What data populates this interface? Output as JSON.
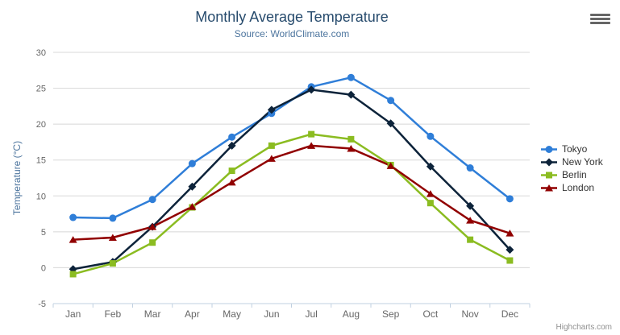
{
  "chart_data": {
    "type": "line",
    "title": "Monthly Average Temperature",
    "subtitle": "Source: WorldClimate.com",
    "xlabel": "",
    "ylabel": "Temperature (°C)",
    "categories": [
      "Jan",
      "Feb",
      "Mar",
      "Apr",
      "May",
      "Jun",
      "Jul",
      "Aug",
      "Sep",
      "Oct",
      "Nov",
      "Dec"
    ],
    "ylim": [
      -5,
      30
    ],
    "tick_interval": 5,
    "grid": true,
    "legend_position": "right",
    "series": [
      {
        "name": "Tokyo",
        "color": "#2f7ed8",
        "marker": "circle",
        "values": [
          7.0,
          6.9,
          9.5,
          14.5,
          18.2,
          21.5,
          25.2,
          26.5,
          23.3,
          18.3,
          13.9,
          9.6
        ]
      },
      {
        "name": "New York",
        "color": "#0d233a",
        "marker": "diamond",
        "values": [
          -0.2,
          0.8,
          5.7,
          11.3,
          17.0,
          22.0,
          24.8,
          24.1,
          20.1,
          14.1,
          8.6,
          2.5
        ]
      },
      {
        "name": "Berlin",
        "color": "#8bbc21",
        "marker": "square",
        "values": [
          -0.9,
          0.6,
          3.5,
          8.4,
          13.5,
          17.0,
          18.6,
          17.9,
          14.3,
          9.0,
          3.9,
          1.0
        ]
      },
      {
        "name": "London",
        "color": "#910000",
        "marker": "triangle",
        "values": [
          3.9,
          4.2,
          5.7,
          8.5,
          11.9,
          15.2,
          17.0,
          16.6,
          14.2,
          10.3,
          6.6,
          4.8
        ]
      }
    ]
  },
  "credits": "Highcharts.com",
  "colors": {
    "title": "#274b6d",
    "subtitle": "#4d759e",
    "axis_label": "#666666",
    "axis_line": "#c0d0e0",
    "grid": "#d8d8d8",
    "legend_text": "#333333",
    "credits": "#909090",
    "burger": "#666666"
  }
}
